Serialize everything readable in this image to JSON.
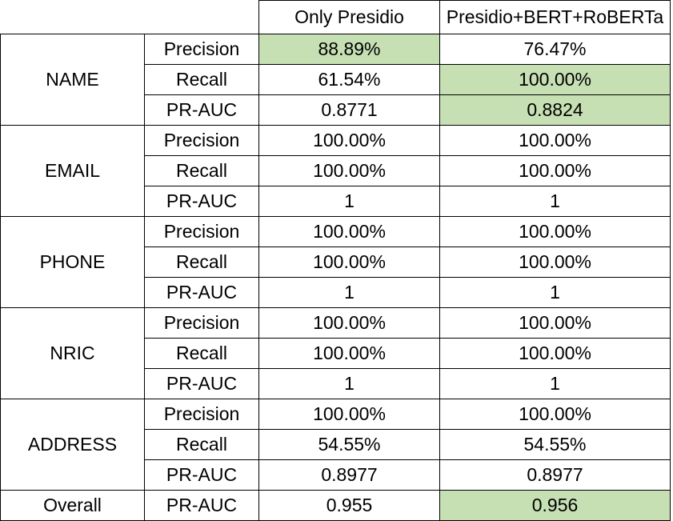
{
  "highlight_color": "#c6e0b4",
  "columns": [
    "Only Presidio",
    "Presidio+BERT+RoBERTa"
  ],
  "groups": [
    {
      "entity": "NAME",
      "rows": [
        {
          "metric": "Precision",
          "presidio": "88.89%",
          "combo": "76.47%",
          "highlight": "presidio"
        },
        {
          "metric": "Recall",
          "presidio": "61.54%",
          "combo": "100.00%",
          "highlight": "combo"
        },
        {
          "metric": "PR-AUC",
          "presidio": "0.8771",
          "combo": "0.8824",
          "highlight": "combo"
        }
      ]
    },
    {
      "entity": "EMAIL",
      "rows": [
        {
          "metric": "Precision",
          "presidio": "100.00%",
          "combo": "100.00%",
          "highlight": ""
        },
        {
          "metric": "Recall",
          "presidio": "100.00%",
          "combo": "100.00%",
          "highlight": ""
        },
        {
          "metric": "PR-AUC",
          "presidio": "1",
          "combo": "1",
          "highlight": ""
        }
      ]
    },
    {
      "entity": "PHONE",
      "rows": [
        {
          "metric": "Precision",
          "presidio": "100.00%",
          "combo": "100.00%",
          "highlight": ""
        },
        {
          "metric": "Recall",
          "presidio": "100.00%",
          "combo": "100.00%",
          "highlight": ""
        },
        {
          "metric": "PR-AUC",
          "presidio": "1",
          "combo": "1",
          "highlight": ""
        }
      ]
    },
    {
      "entity": "NRIC",
      "rows": [
        {
          "metric": "Precision",
          "presidio": "100.00%",
          "combo": "100.00%",
          "highlight": ""
        },
        {
          "metric": "Recall",
          "presidio": "100.00%",
          "combo": "100.00%",
          "highlight": ""
        },
        {
          "metric": "PR-AUC",
          "presidio": "1",
          "combo": "1",
          "highlight": ""
        }
      ]
    },
    {
      "entity": "ADDRESS",
      "rows": [
        {
          "metric": "Precision",
          "presidio": "100.00%",
          "combo": "100.00%",
          "highlight": ""
        },
        {
          "metric": "Recall",
          "presidio": "54.55%",
          "combo": "54.55%",
          "highlight": ""
        },
        {
          "metric": "PR-AUC",
          "presidio": "0.8977",
          "combo": "0.8977",
          "highlight": ""
        }
      ]
    },
    {
      "entity": "Overall",
      "rows": [
        {
          "metric": "PR-AUC",
          "presidio": "0.955",
          "combo": "0.956",
          "highlight": "combo"
        }
      ]
    }
  ]
}
